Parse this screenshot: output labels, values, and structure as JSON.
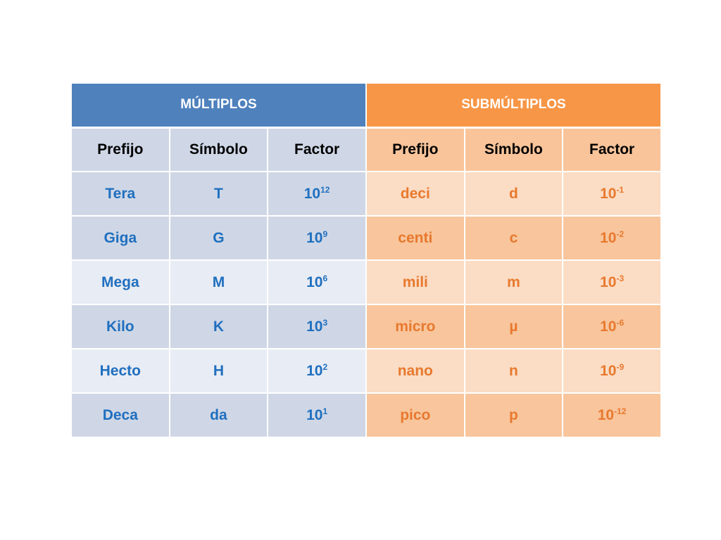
{
  "table": {
    "groups": {
      "multiples": "MÚLTIPLOS",
      "submultiples": "SUBMÚLTIPLOS"
    },
    "columns": {
      "prefix": "Prefijo",
      "symbol": "Símbolo",
      "factor": "Factor"
    },
    "multiples": [
      {
        "prefix": "Tera",
        "symbol": "T",
        "base": "10",
        "exp": "12"
      },
      {
        "prefix": "Giga",
        "symbol": "G",
        "base": "10",
        "exp": "9"
      },
      {
        "prefix": "Mega",
        "symbol": "M",
        "base": "10",
        "exp": "6"
      },
      {
        "prefix": "Kilo",
        "symbol": "K",
        "base": "10",
        "exp": "3"
      },
      {
        "prefix": "Hecto",
        "symbol": "H",
        "base": "10",
        "exp": "2"
      },
      {
        "prefix": "Deca",
        "symbol": "da",
        "base": "10",
        "exp": "1"
      }
    ],
    "submultiples": [
      {
        "prefix": "deci",
        "symbol": "d",
        "base": "10",
        "exp": "-1"
      },
      {
        "prefix": "centi",
        "symbol": "c",
        "base": "10",
        "exp": "-2"
      },
      {
        "prefix": "mili",
        "symbol": "m",
        "base": "10",
        "exp": "-3"
      },
      {
        "prefix": "micro",
        "symbol": "µ",
        "base": "10",
        "exp": "-6"
      },
      {
        "prefix": "nano",
        "symbol": "n",
        "base": "10",
        "exp": "-9"
      },
      {
        "prefix": "pico",
        "symbol": "p",
        "base": "10",
        "exp": "-12"
      }
    ],
    "colors": {
      "multiples_header": "#4f81bd",
      "submultiples_header": "#f79646",
      "multiples_text": "#1f6fbf",
      "submultiples_text": "#e8792e"
    }
  }
}
